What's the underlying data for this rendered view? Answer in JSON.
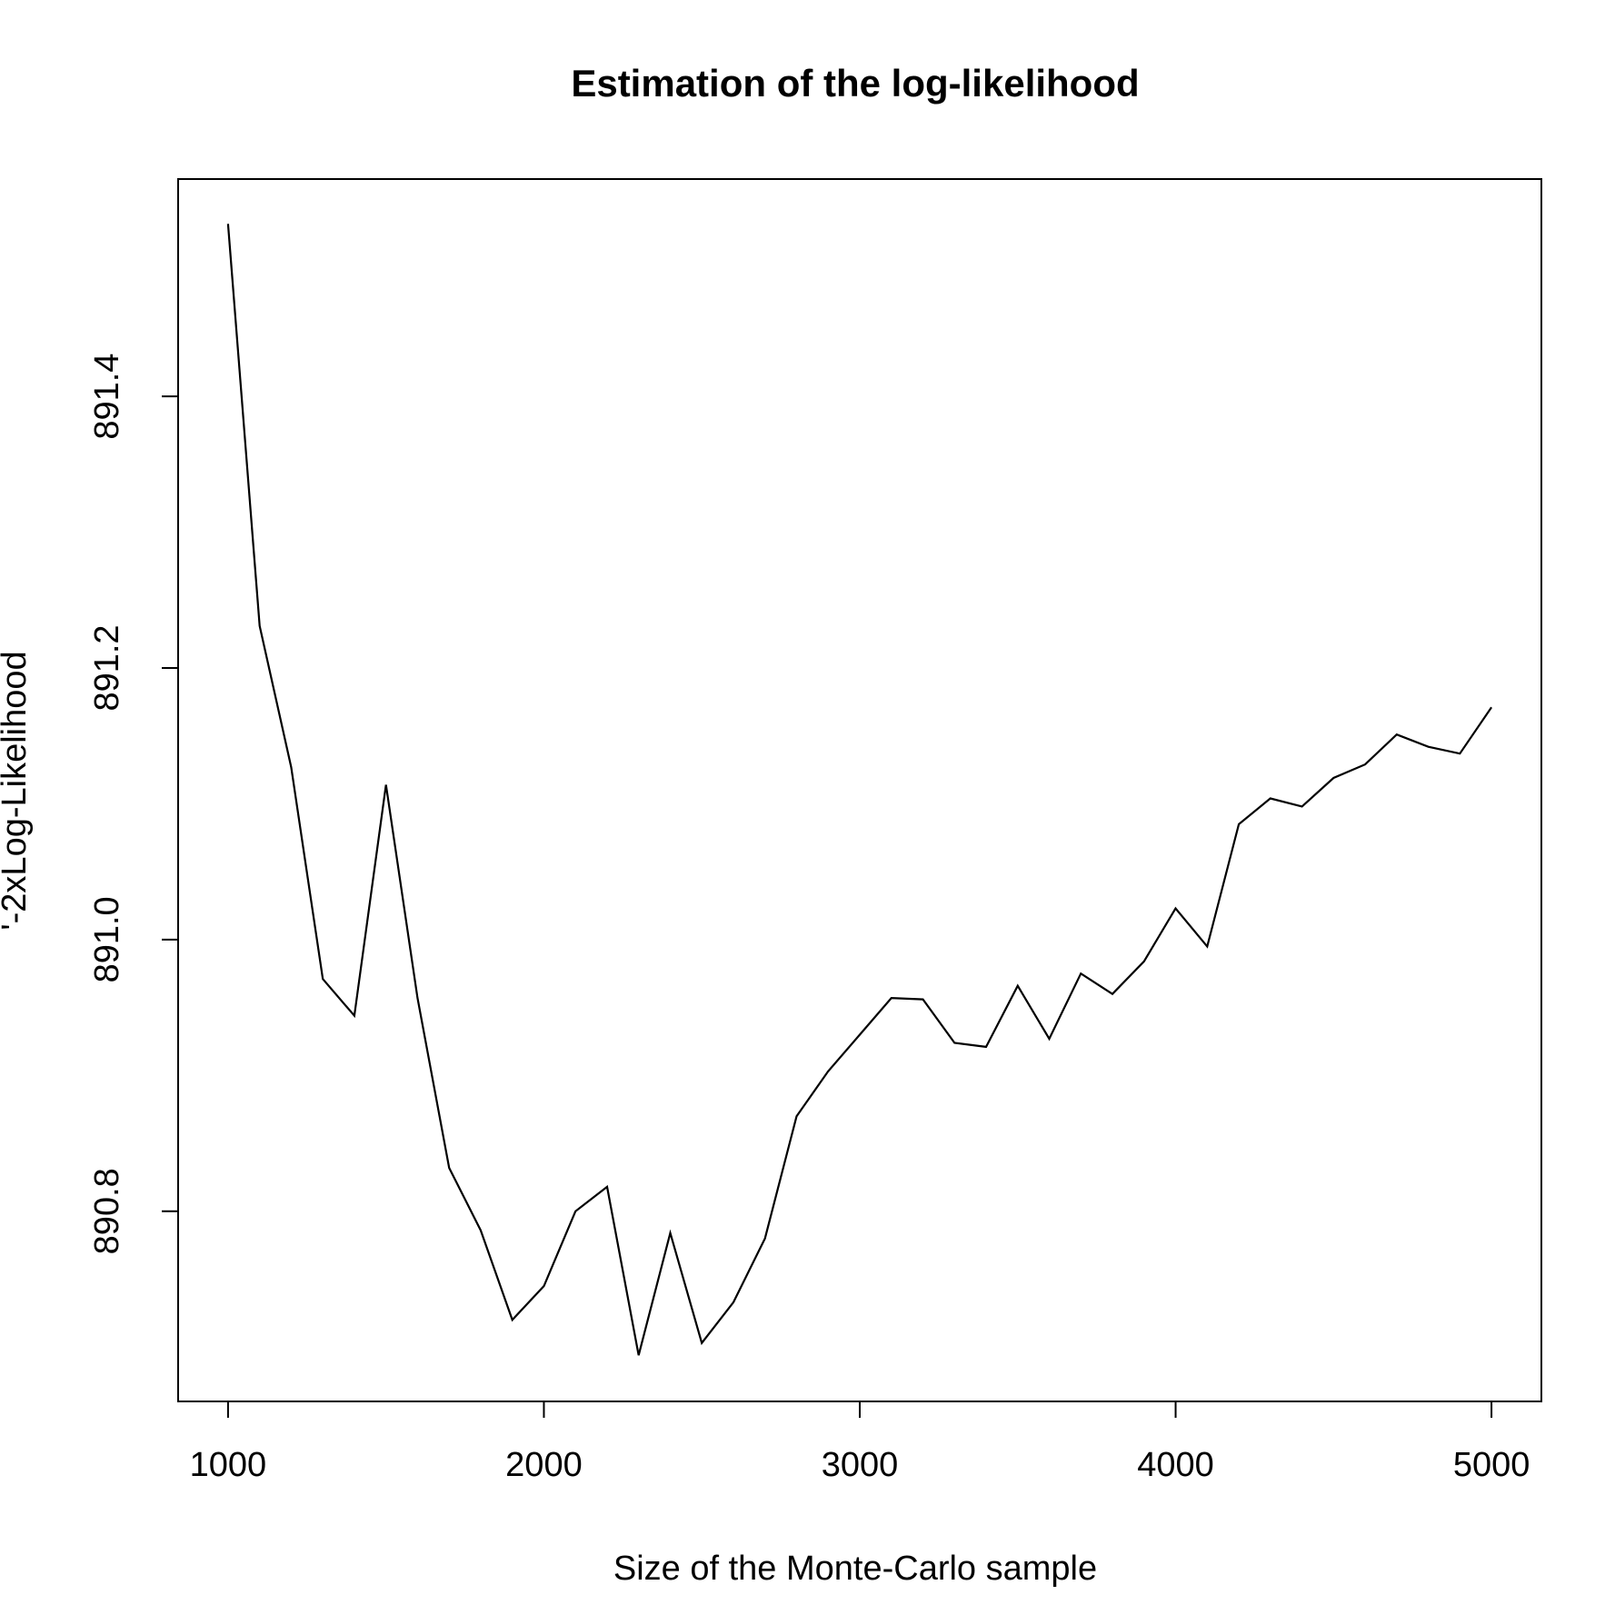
{
  "chart_data": {
    "type": "line",
    "title": "Estimation of the log-likelihood",
    "xlabel": "Size of the Monte-Carlo sample",
    "ylabel": "'-2xLog-Likelihood",
    "xlim": [
      842,
      5158
    ],
    "ylim": [
      890.66,
      891.56
    ],
    "x_ticks": [
      1000,
      2000,
      3000,
      4000,
      5000
    ],
    "x_tick_labels": [
      "1000",
      "2000",
      "3000",
      "4000",
      "5000"
    ],
    "y_ticks": [
      890.8,
      891.0,
      891.2,
      891.4
    ],
    "y_tick_labels": [
      "890.8",
      "891.0",
      "891.2",
      "891.4"
    ],
    "grid": false,
    "legend": "none",
    "series": [
      {
        "color": "#000000",
        "x": [
          1000,
          1100,
          1200,
          1300,
          1400,
          1500,
          1600,
          1700,
          1800,
          1900,
          2000,
          2100,
          2200,
          2300,
          2400,
          2500,
          2600,
          2700,
          2800,
          2900,
          3000,
          3100,
          3200,
          3300,
          3400,
          3500,
          3600,
          3700,
          3800,
          3900,
          4000,
          4100,
          4200,
          4300,
          4400,
          4500,
          4600,
          4700,
          4800,
          4900,
          5000
        ],
        "y": [
          891.527,
          891.231,
          891.127,
          890.971,
          890.944,
          891.114,
          890.957,
          890.832,
          890.786,
          890.72,
          890.745,
          890.8,
          890.818,
          890.694,
          890.784,
          890.703,
          890.733,
          890.78,
          890.87,
          890.903,
          890.93,
          890.957,
          890.956,
          890.924,
          890.921,
          890.966,
          890.927,
          890.975,
          890.96,
          890.984,
          891.023,
          890.995,
          891.085,
          891.104,
          891.098,
          891.119,
          891.129,
          891.151,
          891.142,
          891.137,
          891.171
        ]
      }
    ]
  }
}
